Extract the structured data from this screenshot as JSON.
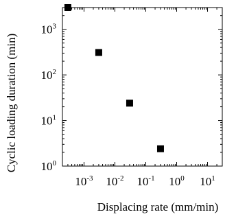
{
  "chart_data": {
    "type": "scatter",
    "xlabel": "Displacing rate (mm/min)",
    "ylabel": "Cyclic loading duration (min)",
    "x_scale": "log",
    "y_scale": "log",
    "xlim": [
      0.0002,
      30
    ],
    "ylim": [
      1,
      3000
    ],
    "grid": false,
    "x_ticks": [
      {
        "value": 0.001,
        "base": "10",
        "exp": "-3"
      },
      {
        "value": 0.01,
        "base": "10",
        "exp": "-2"
      },
      {
        "value": 0.1,
        "base": "10",
        "exp": "-1"
      },
      {
        "value": 1,
        "base": "10",
        "exp": "0"
      },
      {
        "value": 10,
        "base": "10",
        "exp": "1"
      }
    ],
    "y_ticks": [
      {
        "value": 1,
        "base": "10",
        "exp": "0"
      },
      {
        "value": 10,
        "base": "10",
        "exp": "1"
      },
      {
        "value": 100,
        "base": "10",
        "exp": "2"
      },
      {
        "value": 1000,
        "base": "10",
        "exp": "3"
      }
    ],
    "series": [
      {
        "marker": "square",
        "color": "#000000",
        "x": [
          0.0003,
          0.003,
          0.03,
          0.3
        ],
        "y": [
          3000,
          310,
          24,
          2.4
        ]
      }
    ]
  }
}
